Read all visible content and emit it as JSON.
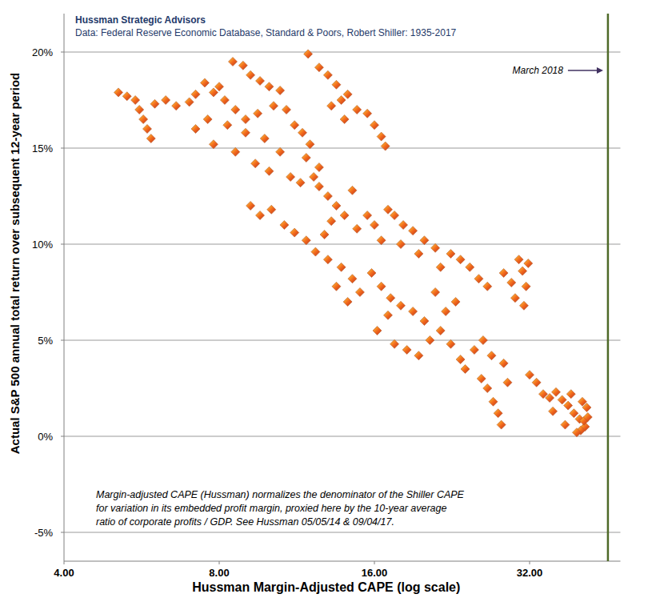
{
  "chart_data": {
    "type": "scatter",
    "title": "Hussman Strategic Advisors",
    "subtitle": "Data: Federal Reserve Economic Database, Standard & Poors, Robert Shiller: 1935-2017",
    "x_label": "Hussman Margin-Adjusted CAPE (log scale)",
    "y_label": "Actual S&P 500 annual total return over subsequent 12-year period",
    "note": [
      "Margin-adjusted CAPE (Hussman) normalizes the denominator of the Shiller CAPE",
      "for variation in its embedded profit margin, proxied here by the 10-year average",
      "ratio of corporate profits / GDP. See Hussman 05/05/14 & 09/04/17."
    ],
    "annotation": {
      "text": "March 2018",
      "x": 45.4
    },
    "log": "x",
    "grid": true,
    "marker": "diamond",
    "color": "#f26b1d",
    "xlim": [
      4,
      48
    ],
    "xticks": [
      {
        "value": 4,
        "label": "4.00"
      },
      {
        "value": 8,
        "label": "8.00"
      },
      {
        "value": 16,
        "label": "16.00"
      },
      {
        "value": 32,
        "label": "32.00"
      }
    ],
    "ylim": [
      -6.5,
      22
    ],
    "yticks": [
      {
        "value": -5,
        "label": "-5%"
      },
      {
        "value": 0,
        "label": "0%"
      },
      {
        "value": 5,
        "label": "5%"
      },
      {
        "value": 10,
        "label": "10%"
      },
      {
        "value": 15,
        "label": "15%"
      },
      {
        "value": 20,
        "label": "20%"
      }
    ],
    "x": [
      5.1,
      5.3,
      5.5,
      5.6,
      5.7,
      5.8,
      5.9,
      6.0,
      6.3,
      6.6,
      7.0,
      7.2,
      7.5,
      7.8,
      8.5,
      8.9,
      9.2,
      9.6,
      10.0,
      10.5,
      8.0,
      8.2,
      8.6,
      9.0,
      9.5,
      10.2,
      10.8,
      11.2,
      11.6,
      12.0,
      11.8,
      12.5,
      12.2,
      11.5,
      10.5,
      9.8,
      9.0,
      8.3,
      7.6,
      7.2,
      7.8,
      8.6,
      9.4,
      10.0,
      11.0,
      11.9,
      12.5,
      13.0,
      13.5,
      13.8,
      14.2,
      14.8,
      15.5,
      16.0,
      16.5,
      16.8,
      14.0,
      13.2,
      12.5,
      13.0,
      13.5,
      14.0,
      14.5,
      13.2,
      12.8,
      14.8,
      15.5,
      16.0,
      17.0,
      17.5,
      18.2,
      19.0,
      20.0,
      21.0,
      22.5,
      23.5,
      24.5,
      25.5,
      26.5,
      16.5,
      18.0,
      19.5,
      21.5,
      9.2,
      9.6,
      10.1,
      10.7,
      11.2,
      11.8,
      12.3,
      13.0,
      13.8,
      14.5,
      15.0,
      13.5,
      14.2,
      15.8,
      16.5,
      17.2,
      18.0,
      19.0,
      20.0,
      17.0,
      16.2,
      17.5,
      18.5,
      19.5,
      20.5,
      21.5,
      22.5,
      23.5,
      24.0,
      22.0,
      23.0,
      21.0,
      28.5,
      29.5,
      30.5,
      31.0,
      31.5,
      31.2,
      30.0,
      31.8,
      25.0,
      25.8,
      26.5,
      27.2,
      27.8,
      28.2,
      26.0,
      27.0,
      28.5,
      29.0,
      32.0,
      33.0,
      34.0,
      35.0,
      36.0,
      37.0,
      38.0,
      39.0,
      40.0,
      41.0,
      40.2,
      40.8,
      38.5,
      40.5,
      41.3,
      41.5,
      35.5,
      37.5,
      39.5
    ],
    "values": [
      17.9,
      17.7,
      17.5,
      17.0,
      16.5,
      16.0,
      15.5,
      17.3,
      17.5,
      17.2,
      17.4,
      17.8,
      18.4,
      17.9,
      19.5,
      19.3,
      18.8,
      18.5,
      18.2,
      18.0,
      18.2,
      17.5,
      17.0,
      16.5,
      16.8,
      17.2,
      17.0,
      16.2,
      15.8,
      15.2,
      14.5,
      14.0,
      13.5,
      13.2,
      14.8,
      15.5,
      15.8,
      16.2,
      16.5,
      16.0,
      15.2,
      14.8,
      14.2,
      13.8,
      13.5,
      19.9,
      19.2,
      18.8,
      18.3,
      17.5,
      17.8,
      17.0,
      16.8,
      16.2,
      15.6,
      15.1,
      16.5,
      17.2,
      13.0,
      12.5,
      12.0,
      11.5,
      12.8,
      11.2,
      10.5,
      10.8,
      11.5,
      11.0,
      11.8,
      11.5,
      11.0,
      10.7,
      10.2,
      9.8,
      9.5,
      9.2,
      8.8,
      8.2,
      7.8,
      10.2,
      10.0,
      9.5,
      8.8,
      12.0,
      11.5,
      11.8,
      11.0,
      10.6,
      10.2,
      9.6,
      9.2,
      8.8,
      8.2,
      7.5,
      7.8,
      7.0,
      8.5,
      7.8,
      7.2,
      6.8,
      6.5,
      6.0,
      6.3,
      5.5,
      4.8,
      4.5,
      4.2,
      5.0,
      5.5,
      4.8,
      4.0,
      3.5,
      6.5,
      7.0,
      7.5,
      8.5,
      8.0,
      9.2,
      8.6,
      7.8,
      6.8,
      7.2,
      9.0,
      4.5,
      3.0,
      2.5,
      1.8,
      1.2,
      0.6,
      5.0,
      4.2,
      3.8,
      2.8,
      3.2,
      2.8,
      2.2,
      2.0,
      2.3,
      1.9,
      1.6,
      1.2,
      0.9,
      0.5,
      0.3,
      0.8,
      2.2,
      1.8,
      1.5,
      1.0,
      1.3,
      0.6,
      0.2
    ]
  }
}
